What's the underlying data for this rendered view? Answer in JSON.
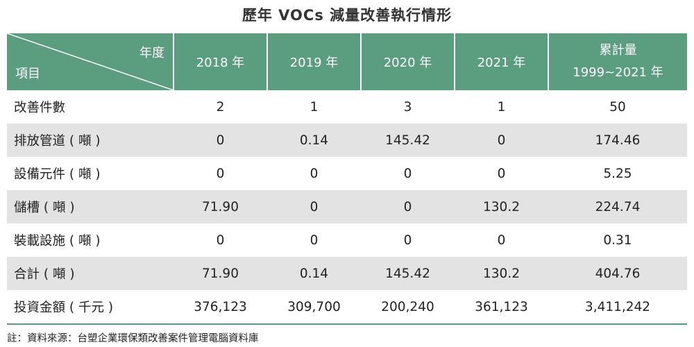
{
  "title": "歷年 VOCs 減量改善執行情形",
  "header": {
    "corner_top": "年度",
    "corner_bottom": "項目",
    "years": [
      "2018 年",
      "2019 年",
      "2020 年",
      "2021 年"
    ],
    "cumulative_line1": "累計量",
    "cumulative_line2": "1999~2021 年"
  },
  "rows": [
    {
      "label": "改善件數",
      "values": [
        "2",
        "1",
        "3",
        "1",
        "50"
      ]
    },
    {
      "label": "排放管道 ( 噸 )",
      "values": [
        "0",
        "0.14",
        "145.42",
        "0",
        "174.46"
      ]
    },
    {
      "label": "設備元件 ( 噸 )",
      "values": [
        "0",
        "0",
        "0",
        "0",
        "5.25"
      ]
    },
    {
      "label": "儲槽 ( 噸 )",
      "values": [
        "71.90",
        "0",
        "0",
        "130.2",
        "224.74"
      ]
    },
    {
      "label": "裝載設施 ( 噸 )",
      "values": [
        "0",
        "0",
        "0",
        "0",
        "0.31"
      ]
    },
    {
      "label": "合計 ( 噸 )",
      "values": [
        "71.90",
        "0.14",
        "145.42",
        "130.2",
        "404.76"
      ]
    },
    {
      "label": "投資金額 ( 千元 )",
      "values": [
        "376,123",
        "309,700",
        "200,240",
        "361,123",
        "3,411,242"
      ]
    }
  ],
  "note": "註：資料來源：台塑企業環保類改善案件管理電腦資料庫",
  "colors": {
    "header_bg": "#5a9e7f",
    "shaded_row": "#e3e3e3"
  }
}
